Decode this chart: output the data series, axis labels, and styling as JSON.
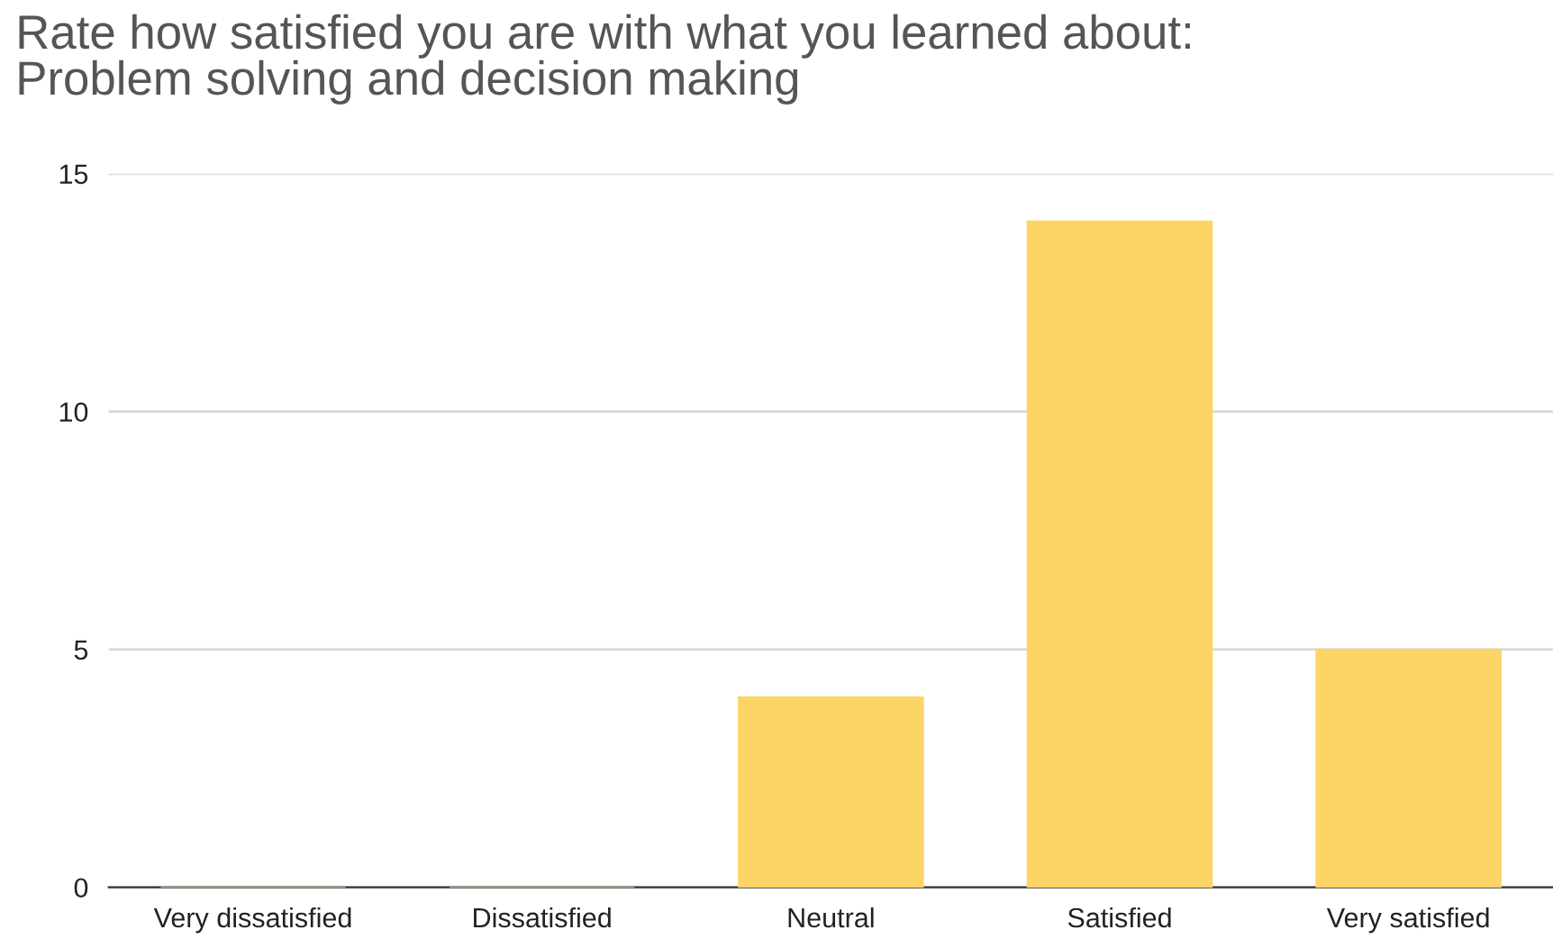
{
  "chart_data": {
    "type": "bar",
    "title": "Rate how satisfied you are with what you learned about:\nProblem solving and decision making",
    "categories": [
      "Very dissatisfied",
      "Dissatisfied",
      "Neutral",
      "Satisfied",
      "Very satisfied"
    ],
    "values": [
      0,
      0,
      4,
      14,
      5
    ],
    "color": "#fdd466",
    "ylim": [
      0,
      15
    ],
    "yticks": [
      0,
      5,
      10,
      15
    ],
    "grid": "y"
  }
}
